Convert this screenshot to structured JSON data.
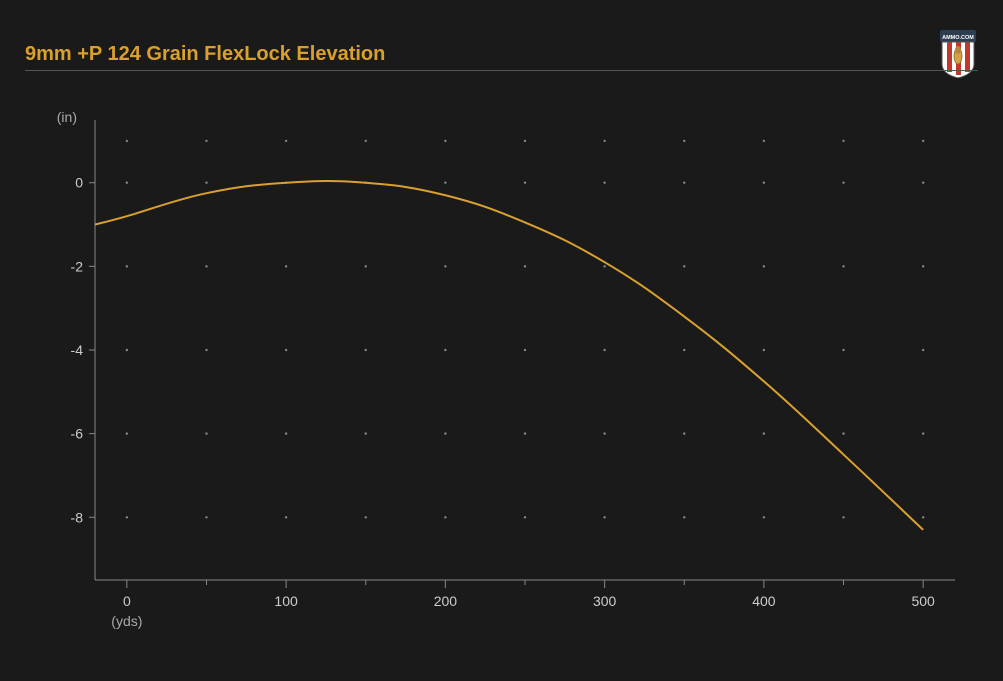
{
  "title": "9mm +P 124 Grain FlexLock Elevation",
  "chart": {
    "type": "line",
    "background_color": "#1a1a1a",
    "title_color": "#d9a02e",
    "title_fontsize": 20,
    "axis_label_color": "#aaaaaa",
    "tick_label_color": "#cccccc",
    "tick_label_fontsize": 14,
    "axis_line_color": "#888888",
    "grid_dot_color": "#888888",
    "line_color": "#d9a02e",
    "line_width": 2,
    "ylabel": "(in)",
    "xlabel": "(yds)",
    "xlim": [
      -20,
      520
    ],
    "ylim": [
      -9.5,
      1.5
    ],
    "x_major_ticks": [
      0,
      100,
      200,
      300,
      400,
      500
    ],
    "x_minor_ticks": [
      50,
      150,
      250,
      350,
      450
    ],
    "y_major_ticks": [
      -8,
      -6,
      -4,
      -2,
      0
    ],
    "grid_x": [
      0,
      50,
      100,
      150,
      200,
      250,
      300,
      350,
      400,
      450,
      500
    ],
    "grid_y": [
      -8,
      -6,
      -4,
      -2,
      0,
      1
    ],
    "data": [
      {
        "x": -20,
        "y": -1.0
      },
      {
        "x": 0,
        "y": -0.8
      },
      {
        "x": 50,
        "y": -0.25
      },
      {
        "x": 100,
        "y": 0.0
      },
      {
        "x": 150,
        "y": 0.0
      },
      {
        "x": 200,
        "y": -0.3
      },
      {
        "x": 250,
        "y": -0.95
      },
      {
        "x": 300,
        "y": -1.9
      },
      {
        "x": 350,
        "y": -3.2
      },
      {
        "x": 400,
        "y": -4.75
      },
      {
        "x": 450,
        "y": -6.5
      },
      {
        "x": 500,
        "y": -8.3
      }
    ]
  },
  "logo": {
    "label_top": "AMMO.COM",
    "shield_stripe_color": "#c0392b",
    "shield_bg_color": "#ffffff",
    "shield_top_color": "#2c3e50",
    "text_color": "#ffffff"
  }
}
